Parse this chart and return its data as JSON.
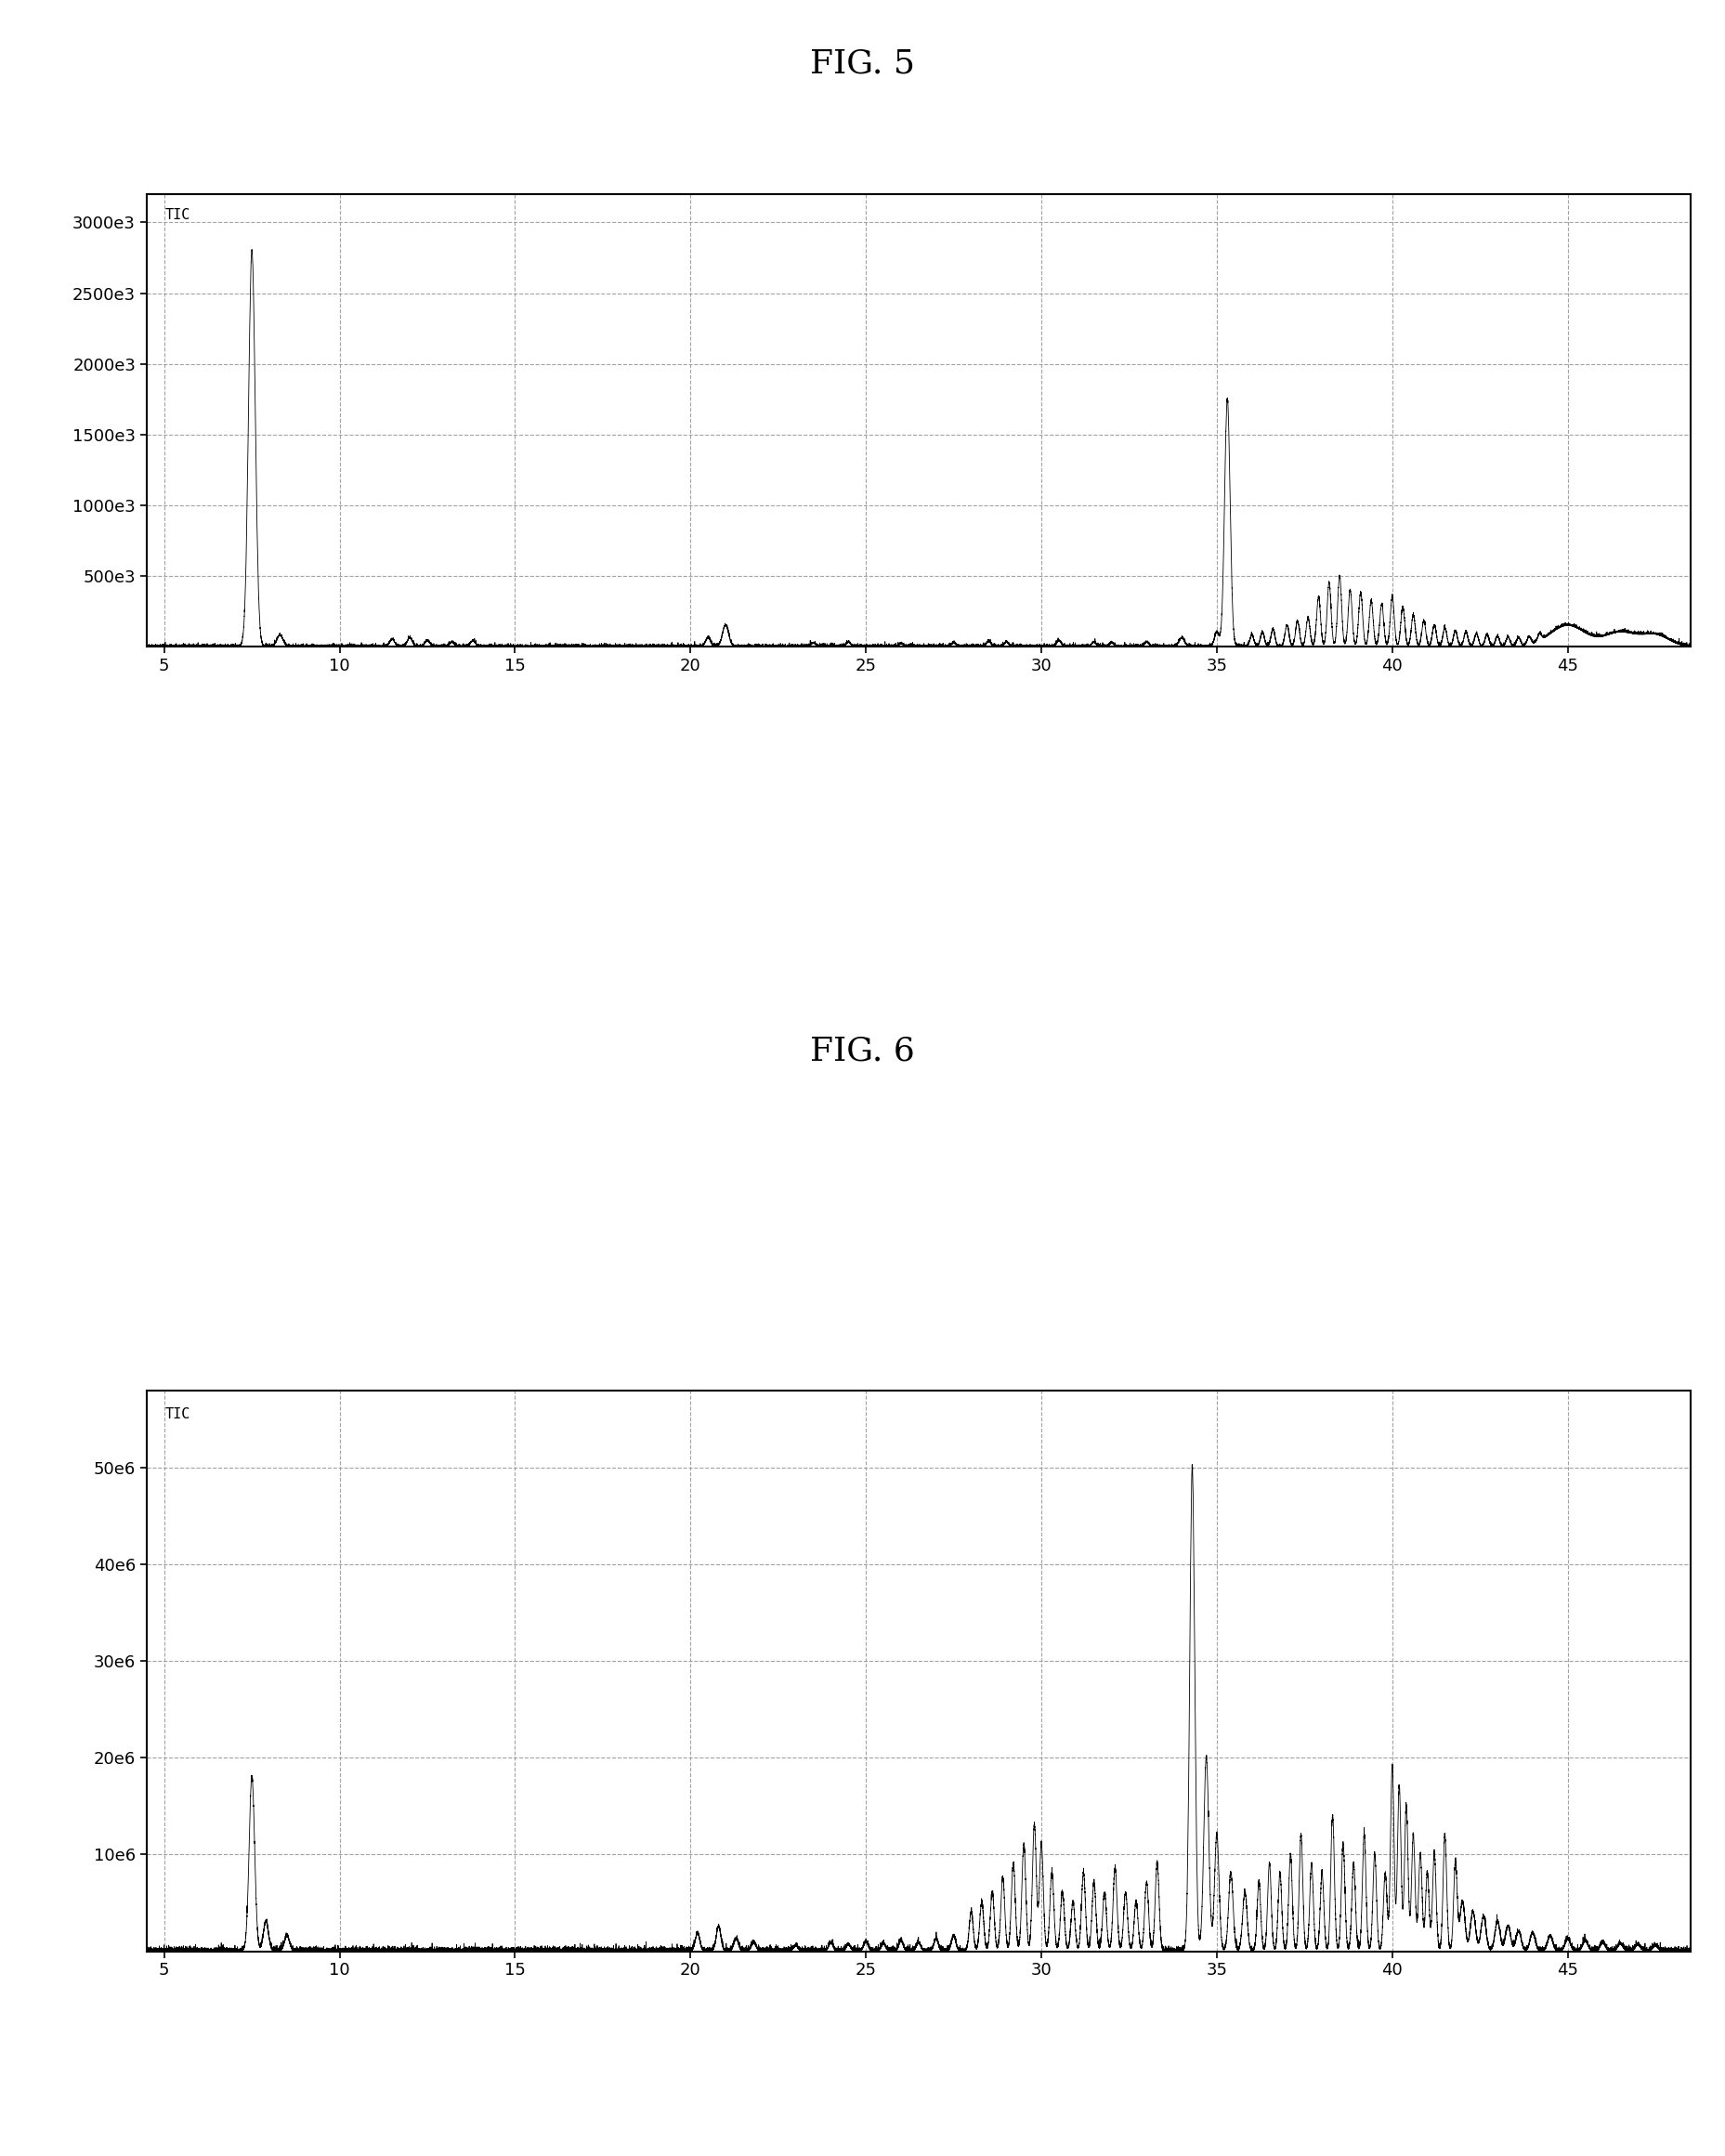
{
  "fig5_title": "FIG. 5",
  "fig6_title": "FIG. 6",
  "tic_label": "TIC",
  "xlim": [
    4.5,
    48.5
  ],
  "xticks": [
    5,
    10,
    15,
    20,
    25,
    30,
    35,
    40,
    45
  ],
  "fig5_ylim": [
    0,
    3200000
  ],
  "fig5_yticks": [
    500000,
    1000000,
    1500000,
    2000000,
    2500000,
    3000000
  ],
  "fig5_ytick_labels": [
    "500e3",
    "1000e3",
    "1500e3",
    "2000e3",
    "2500e3",
    "3000e3"
  ],
  "fig6_ylim": [
    0,
    58000000
  ],
  "fig6_yticks": [
    10000000,
    20000000,
    30000000,
    40000000,
    50000000
  ],
  "fig6_ytick_labels": [
    "10e6",
    "20e6",
    "30e6",
    "40e6",
    "50e6"
  ],
  "background_color": "#ffffff",
  "line_color": "#000000",
  "grid_color": "#999999"
}
